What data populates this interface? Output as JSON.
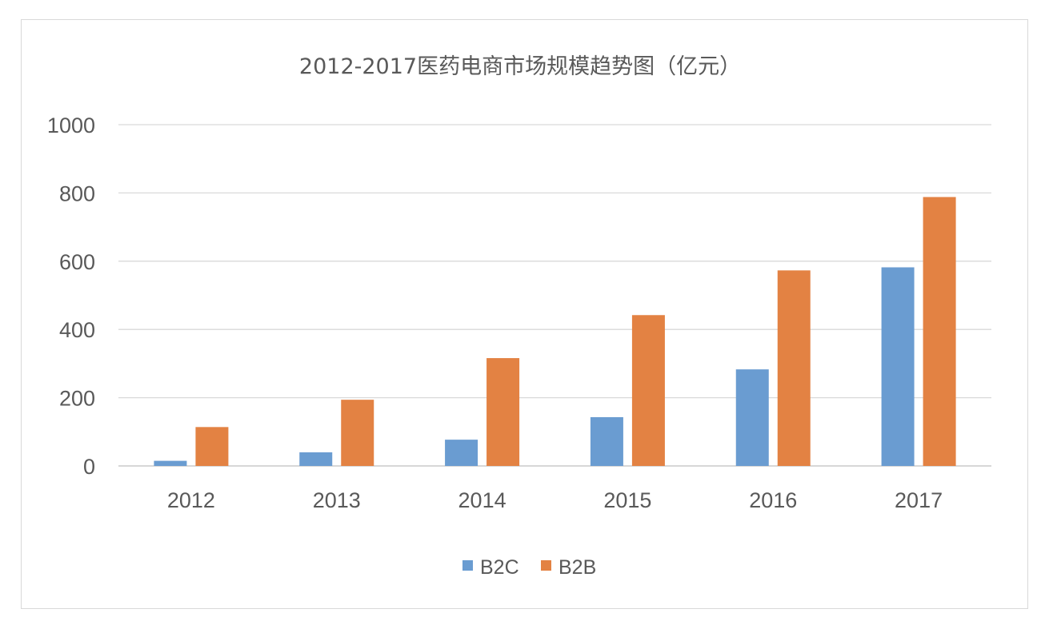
{
  "chart_data": {
    "type": "bar",
    "title": "2012-2017医药电商市场规模趋势图（亿元）",
    "categories": [
      "2012",
      "2013",
      "2014",
      "2015",
      "2016",
      "2017"
    ],
    "series": [
      {
        "name": "B2C",
        "values": [
          15,
          40,
          77,
          143,
          283,
          582
        ],
        "color": "#6a9cd1"
      },
      {
        "name": "B2B",
        "values": [
          114,
          194,
          316,
          442,
          573,
          788
        ],
        "color": "#e38243"
      }
    ],
    "xlabel": "",
    "ylabel": "",
    "ylim": [
      0,
      1000
    ],
    "yticks": [
      0,
      200,
      400,
      600,
      800,
      1000
    ],
    "grid": true,
    "legend_position": "bottom"
  }
}
